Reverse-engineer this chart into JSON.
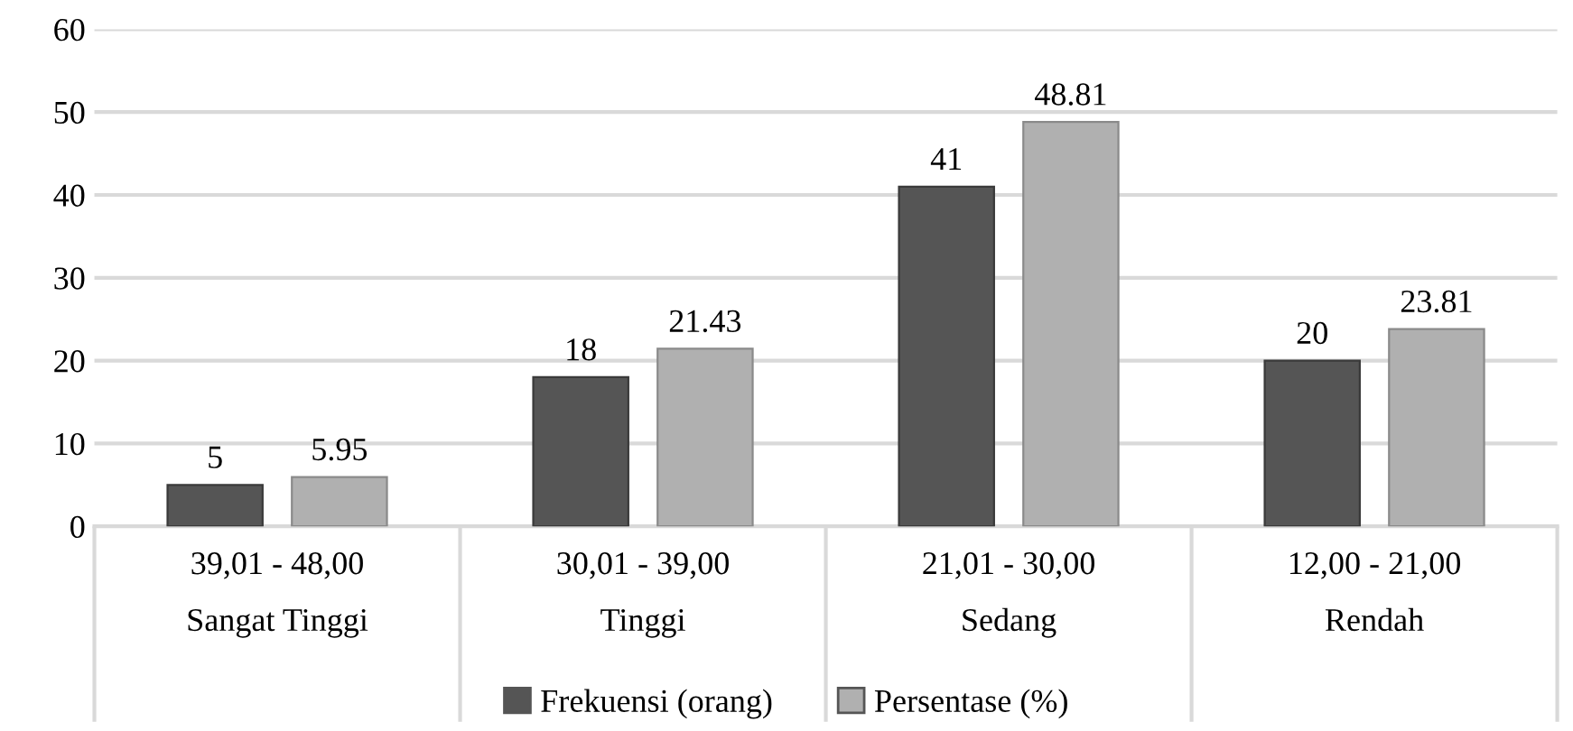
{
  "chart_data": {
    "type": "bar",
    "categories": [
      "39,01 - 48,00\nSangat Tinggi",
      "30,01 - 39,00\nTinggi",
      "21,01 - 30,00\nSedang",
      "12,00 - 21,00\nRendah"
    ],
    "series": [
      {
        "name": "Frekuensi (orang)",
        "color": "#555555",
        "values": [
          5,
          18,
          41,
          20
        ]
      },
      {
        "name": "Persentase (%)",
        "color": "#b0b0b0",
        "values": [
          5.95,
          21.43,
          48.81,
          23.81
        ]
      }
    ],
    "ylim": [
      0,
      60
    ],
    "yticks": [
      0,
      10,
      20,
      30,
      40,
      50,
      60
    ],
    "grid": "y",
    "legend": "bottom",
    "data_labels": true
  }
}
